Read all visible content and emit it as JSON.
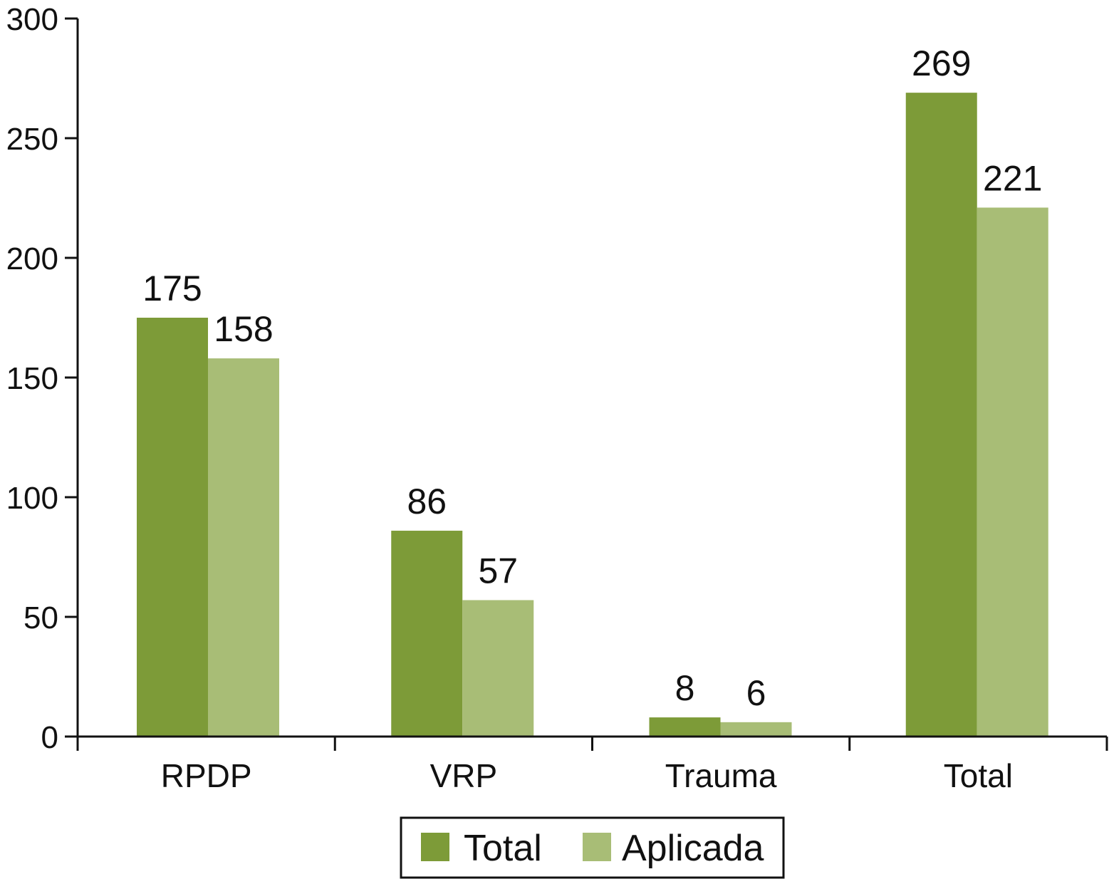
{
  "chart_data": {
    "type": "bar",
    "title": "",
    "xlabel": "",
    "ylabel": "",
    "categories": [
      "RPDP",
      "VRP",
      "Trauma",
      "Total"
    ],
    "series": [
      {
        "name": "Total",
        "values": [
          175,
          86,
          8,
          269
        ],
        "color": "#7d9b38"
      },
      {
        "name": "Aplicada",
        "values": [
          158,
          57,
          6,
          221
        ],
        "color": "#a8bd76"
      }
    ],
    "ylim": [
      0,
      300
    ],
    "yticks": [
      0,
      50,
      100,
      150,
      200,
      250,
      300
    ],
    "grid": false,
    "legend_position": "bottom-center"
  }
}
